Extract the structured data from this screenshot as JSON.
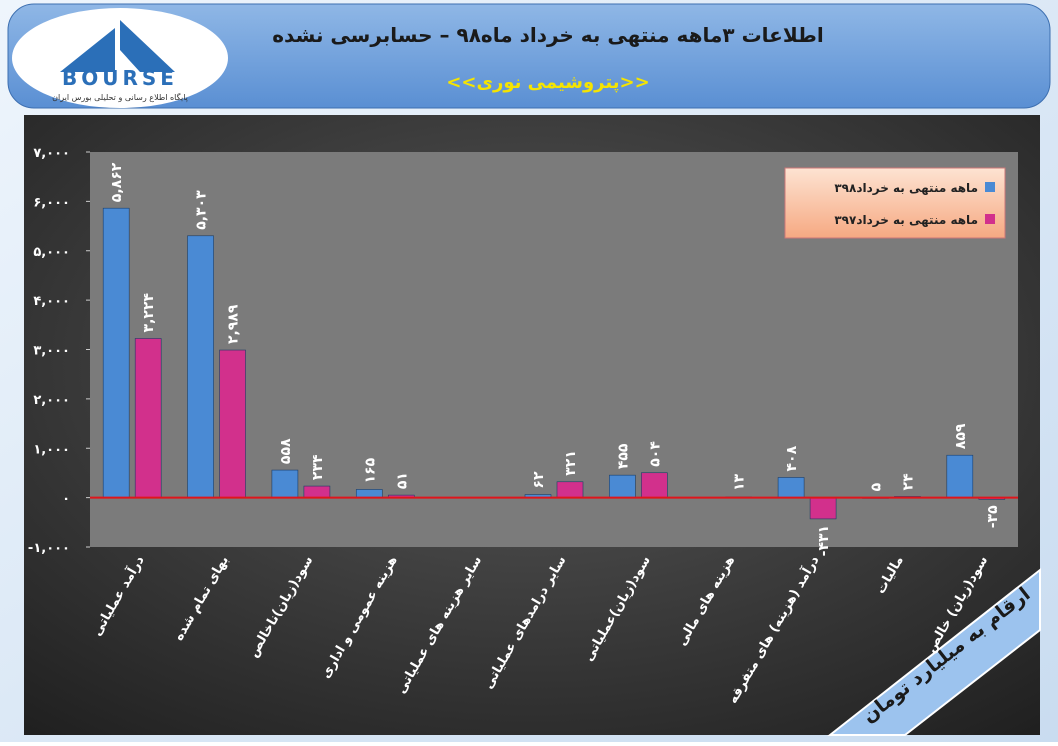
{
  "logo": {
    "text": "BOURSE",
    "caption": "پایگاه اطلاع رسانی و تحلیلی بورس ایران"
  },
  "chart_data": {
    "type": "bar",
    "title": "اطلاعات ۳ماهه منتهی به خرداد ماه۹۸ – حسابرسی نشده",
    "subtitle": "<<پتروشیمی نوری>>",
    "annotation": "ارقام به میلیارد تومان",
    "categories": [
      "درآمد عملیاتی",
      "بهای تمام شده",
      "سود(زیان)ناخالص",
      "هزینه عمومی و اداری",
      "سایر هزینه های عملیاتی",
      "سایر درامدهای عملیاتی",
      "سود(زیان)عملیاتی",
      "هزینه های مالی",
      "درآمد (هزینه) های متفرقه",
      "مالیات",
      "سود(زیان) خالص"
    ],
    "series": [
      {
        "name": "۳ماهه منتهی به خرداد۹۸",
        "color": "#4a8ad4",
        "values": [
          5862,
          5303,
          558,
          165,
          null,
          62,
          455,
          null,
          408,
          5,
          859
        ],
        "value_labels": [
          "۵,۸۶۲",
          "۵,۳۰۳",
          "۵۵۸",
          "۱۶۵",
          null,
          "۶۲",
          "۴۵۵",
          null,
          "۴۰۸",
          "۵",
          "۸۵۹"
        ]
      },
      {
        "name": "۳ماهه منتهی به خرداد۹۷",
        "color": "#d2308c",
        "values": [
          3224,
          2989,
          234,
          51,
          null,
          321,
          504,
          13,
          -431,
          24,
          -35
        ],
        "value_labels": [
          "۳,۲۲۴",
          "۲,۹۸۹",
          "۲۳۴",
          "۵۱",
          null,
          "۳۲۱",
          "۵۰۴",
          "۱۳",
          "-۴۳۱",
          "۲۴",
          "-۳۵"
        ]
      }
    ],
    "ylim": [
      -1000,
      7000
    ],
    "yticks": [
      {
        "value": -1000,
        "label": "-۱,۰۰۰"
      },
      {
        "value": 0,
        "label": "۰"
      },
      {
        "value": 1000,
        "label": "۱,۰۰۰"
      },
      {
        "value": 2000,
        "label": "۲,۰۰۰"
      },
      {
        "value": 3000,
        "label": "۳,۰۰۰"
      },
      {
        "value": 4000,
        "label": "۴,۰۰۰"
      },
      {
        "value": 5000,
        "label": "۵,۰۰۰"
      },
      {
        "value": 6000,
        "label": "۶,۰۰۰"
      },
      {
        "value": 7000,
        "label": "۷,۰۰۰"
      }
    ],
    "legend": "top-right"
  }
}
